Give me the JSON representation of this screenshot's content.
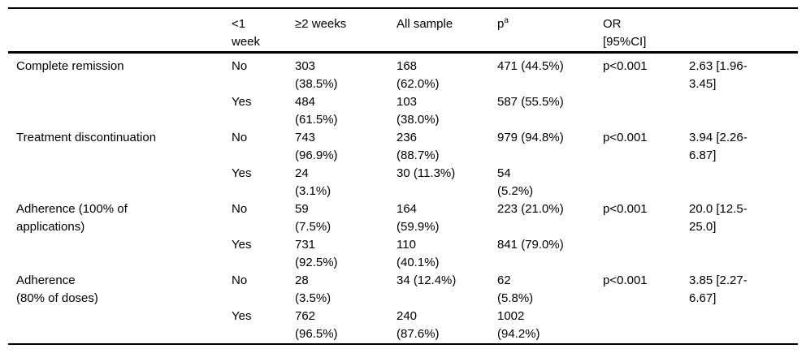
{
  "table": {
    "header": {
      "cells": [
        "",
        "<1\nweek",
        "≥2 weeks",
        "All sample",
        "p",
        "OR\n[95%CI]",
        ""
      ],
      "p_sup": "a"
    },
    "groups": [
      {
        "label": "Complete remission",
        "rows": [
          {
            "cells": [
              "No",
              "303\n(38.5%)",
              "168\n(62.0%)",
              "471 (44.5%)",
              "p<0.001",
              "2.63 [1.96-\n3.45]"
            ]
          },
          {
            "cells": [
              "Yes",
              "484\n(61.5%)",
              "103\n(38.0%)",
              "587 (55.5%)",
              "",
              ""
            ]
          }
        ]
      },
      {
        "label": "Treatment discontinuation",
        "rows": [
          {
            "cells": [
              "No",
              "743\n(96.9%)",
              "236\n(88.7%)",
              "979 (94.8%)",
              "p<0.001",
              "3.94 [2.26-\n6.87]"
            ]
          },
          {
            "cells": [
              "Yes",
              "24\n(3.1%)",
              "30 (11.3%)",
              "54\n(5.2%)",
              "",
              ""
            ]
          }
        ]
      },
      {
        "label": "Adherence (100% of\napplications)",
        "rows": [
          {
            "cells": [
              "No",
              "59\n(7.5%)",
              "164\n(59.9%)",
              "223 (21.0%)",
              "p<0.001",
              "20.0 [12.5-\n25.0]"
            ]
          },
          {
            "cells": [
              "Yes",
              "731\n(92.5%)",
              "110\n(40.1%)",
              "841 (79.0%)",
              "",
              ""
            ]
          }
        ]
      },
      {
        "label": "Adherence\n(80% of doses)",
        "rows": [
          {
            "cells": [
              "No",
              "28\n(3.5%)",
              "34 (12.4%)",
              "62\n(5.8%)",
              "p<0.001",
              "3.85 [2.27-\n6.67]"
            ]
          },
          {
            "cells": [
              "Yes",
              "762\n(96.5%)",
              "240\n(87.6%)",
              "1002\n(94.2%)",
              "",
              ""
            ]
          }
        ]
      }
    ]
  }
}
